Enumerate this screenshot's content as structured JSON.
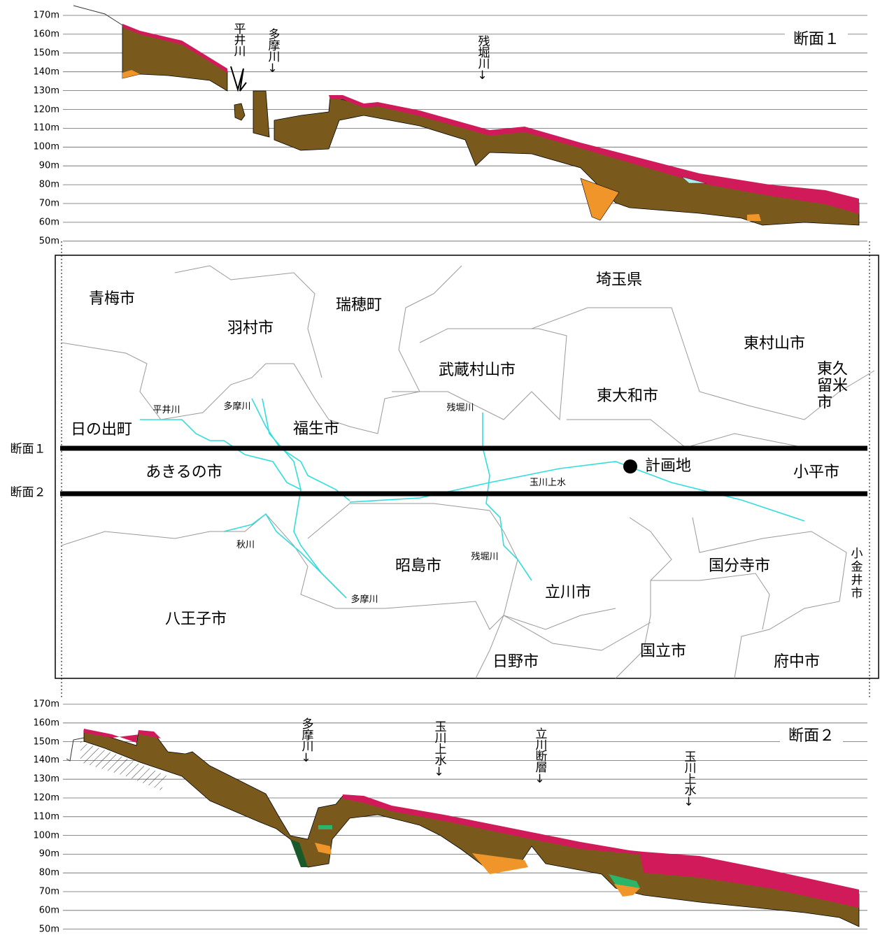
{
  "section1": {
    "title": "断面１",
    "elevation_labels": [
      "170m",
      "160m",
      "150m",
      "140m",
      "130m",
      "120m",
      "110m",
      "100m",
      "90m",
      "80m",
      "70m",
      "60m",
      "50m"
    ],
    "annotations": [
      "平井川",
      "多摩川↓",
      "残堀川↓"
    ]
  },
  "map": {
    "places": [
      "青梅市",
      "瑞穂町",
      "埼玉県",
      "羽村市",
      "東村山市",
      "武蔵村山市",
      "東久\n留米市",
      "東大和市",
      "日の出町",
      "福生市",
      "あきるの市",
      "小平市",
      "昭島市",
      "国分寺市",
      "立川市",
      "八王子市",
      "国立市",
      "日野市",
      "府中市",
      "小金井市"
    ],
    "rivers": [
      "平井川",
      "多摩川",
      "残堀川",
      "玉川上水",
      "秋川",
      "残堀川",
      "多摩川"
    ],
    "site": "計画地",
    "section_labels": [
      "断面１",
      "断面２"
    ]
  },
  "section2": {
    "title": "断面２",
    "elevation_labels": [
      "170m",
      "160m",
      "150m",
      "140m",
      "130m",
      "120m",
      "110m",
      "100m",
      "90m",
      "80m",
      "70m",
      "60m",
      "50m"
    ],
    "annotations": [
      "多摩川↓",
      "玉川上水↓",
      "立川断層↓",
      "玉川上水↓"
    ]
  }
}
